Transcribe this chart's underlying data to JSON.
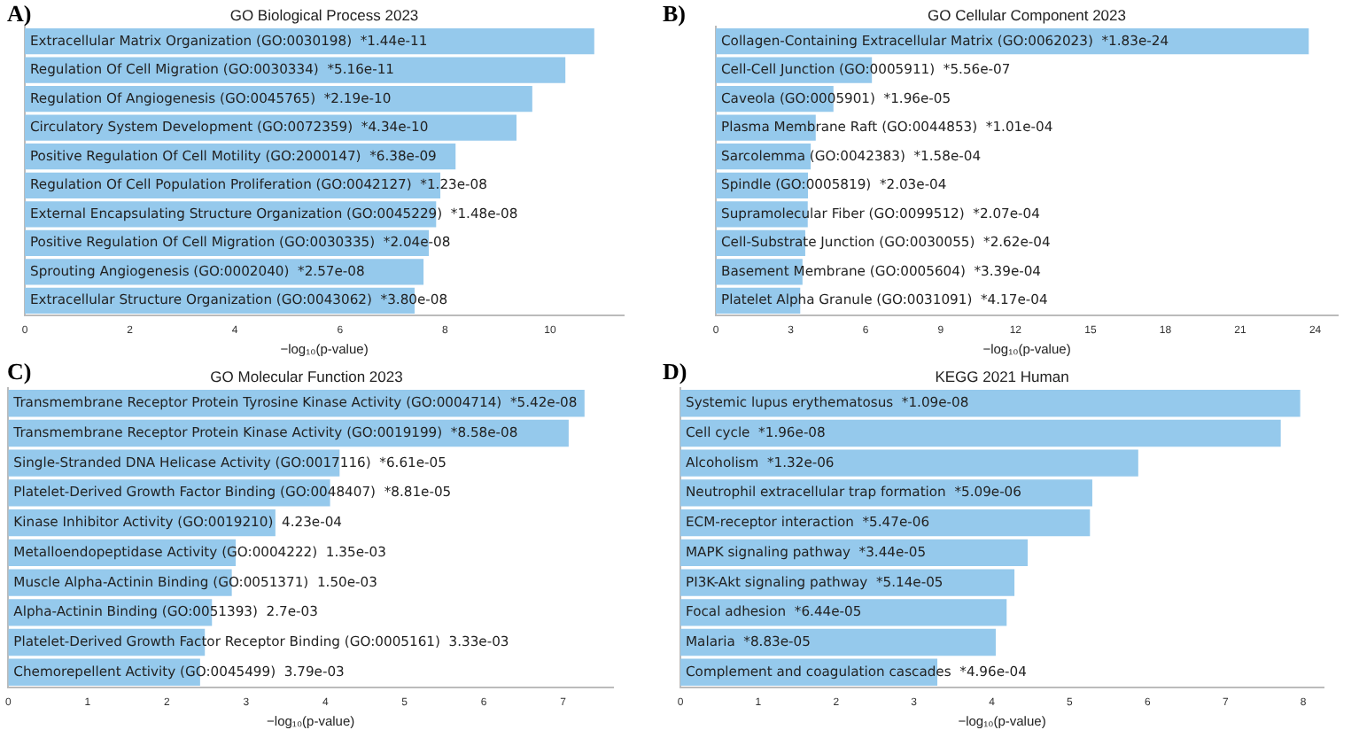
{
  "chart_data": [
    {
      "type": "bar",
      "orientation": "horizontal",
      "title": "GO Biological Process 2023",
      "xlabel": "−log₁₀(p-value)",
      "annotations": [
        "A)"
      ],
      "color": "#95c9ec",
      "tick_labels": "x",
      "grid": false,
      "categories": [
        "Extracellular Matrix Organization (GO:0030198)  *1.44e-11",
        "Regulation Of Cell Migration (GO:0030334)  *5.16e-11",
        "Regulation Of Angiogenesis (GO:0045765)  *2.19e-10",
        "Circulatory System Development (GO:0072359)  *4.34e-10",
        "Positive Regulation Of Cell Motility (GO:2000147)  *6.38e-09",
        "Regulation Of Cell Population Proliferation (GO:0042127)  *1.23e-08",
        "External Encapsulating Structure Organization (GO:0045229)  *1.48e-08",
        "Positive Regulation Of Cell Migration (GO:0030335)  *2.04e-08",
        "Sprouting Angiogenesis (GO:0002040)  *2.57e-08",
        "Extracellular Structure Organization (GO:0043062)  *3.80e-08"
      ],
      "values": [
        10.84,
        10.29,
        9.66,
        9.36,
        8.2,
        7.91,
        7.83,
        7.69,
        7.59,
        7.42
      ],
      "xlim": [
        0,
        11.4
      ],
      "xticks": [
        0,
        2,
        4,
        6,
        8,
        10
      ]
    },
    {
      "type": "bar",
      "orientation": "horizontal",
      "title": "GO Cellular Component 2023",
      "xlabel": "−log₁₀(p-value)",
      "annotations": [
        "B)"
      ],
      "color": "#95c9ec",
      "tick_labels": "x",
      "grid": false,
      "categories": [
        "Collagen-Containing Extracellular Matrix (GO:0062023)  *1.83e-24",
        "Cell-Cell Junction (GO:0005911)  *5.56e-07",
        "Caveola (GO:0005901)  *1.96e-05",
        "Plasma Membrane Raft (GO:0044853)  *1.01e-04",
        "Sarcolemma (GO:0042383)  *1.58e-04",
        "Spindle (GO:0005819)  *2.03e-04",
        "Supramolecular Fiber (GO:0099512)  *2.07e-04",
        "Cell-Substrate Junction (GO:0030055)  *2.62e-04",
        "Basement Membrane (GO:0005604)  *3.39e-04",
        "Platelet Alpha Granule (GO:0031091)  *4.17e-04"
      ],
      "values": [
        23.74,
        6.25,
        4.71,
        4.0,
        3.8,
        3.69,
        3.68,
        3.58,
        3.47,
        3.38
      ],
      "xlim": [
        0,
        24.9
      ],
      "xticks": [
        0,
        3,
        6,
        9,
        12,
        15,
        18,
        21,
        24
      ]
    },
    {
      "type": "bar",
      "orientation": "horizontal",
      "title": "GO Molecular Function 2023",
      "xlabel": "−log₁₀(p-value)",
      "annotations": [
        "C)"
      ],
      "color": "#95c9ec",
      "tick_labels": "x",
      "grid": false,
      "categories": [
        "Transmembrane Receptor Protein Tyrosine Kinase Activity (GO:0004714)  *5.42e-08",
        "Transmembrane Receptor Protein Kinase Activity (GO:0019199)  *8.58e-08",
        "Single-Stranded DNA Helicase Activity (GO:0017116)  *6.61e-05",
        "Platelet-Derived Growth Factor Binding (GO:0048407)  *8.81e-05",
        "Kinase Inhibitor Activity (GO:0019210)  4.23e-04",
        "Metalloendopeptidase Activity (GO:0004222)  1.35e-03",
        "Muscle Alpha-Actinin Binding (GO:0051371)  1.50e-03",
        "Alpha-Actinin Binding (GO:0051393)  2.7e-03",
        "Platelet-Derived Growth Factor Receptor Binding (GO:0005161)  3.33e-03",
        "Chemorepellent Activity (GO:0045499)  3.79e-03"
      ],
      "values": [
        7.27,
        7.07,
        4.18,
        4.06,
        3.37,
        2.87,
        2.82,
        2.57,
        2.48,
        2.42
      ],
      "xlim": [
        0,
        7.63
      ],
      "xticks": [
        0,
        1,
        2,
        3,
        4,
        5,
        6,
        7
      ]
    },
    {
      "type": "bar",
      "orientation": "horizontal",
      "title": "KEGG 2021 Human",
      "xlabel": "−log₁₀(p-value)",
      "annotations": [
        "D)"
      ],
      "color": "#95c9ec",
      "tick_labels": "x",
      "grid": false,
      "categories": [
        "Systemic lupus erythematosus  *1.09e-08",
        "Cell cycle  *1.96e-08",
        "Alcoholism  *1.32e-06",
        "Neutrophil extracellular trap formation  *5.09e-06",
        "ECM-receptor interaction  *5.47e-06",
        "MAPK signaling pathway  *3.44e-05",
        "PI3K-Akt signaling pathway  *5.14e-05",
        "Focal adhesion  *6.44e-05",
        "Malaria  *8.83e-05",
        "Complement and coagulation cascades  *4.96e-04"
      ],
      "values": [
        7.96,
        7.71,
        5.88,
        5.29,
        5.26,
        4.46,
        4.29,
        4.19,
        4.05,
        3.3
      ],
      "xlim": [
        0,
        8.26
      ],
      "xticks": [
        0,
        1,
        2,
        3,
        4,
        5,
        6,
        7,
        8
      ]
    }
  ]
}
